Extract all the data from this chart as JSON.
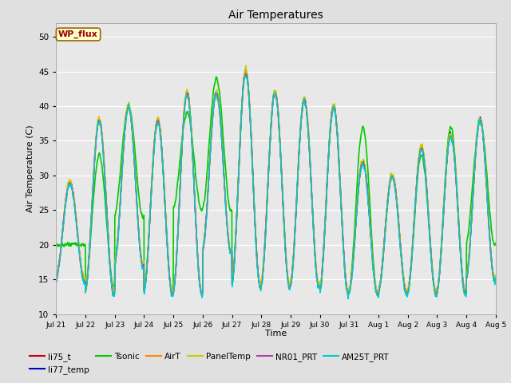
{
  "title": "Air Temperatures",
  "xlabel": "Time",
  "ylabel": "Air Temperature (C)",
  "ylim": [
    10,
    52
  ],
  "yticks": [
    10,
    15,
    20,
    25,
    30,
    35,
    40,
    45,
    50
  ],
  "figure_bg": "#e0e0e0",
  "axes_bg": "#e8e8e8",
  "series": [
    {
      "label": "li75_t",
      "color": "#cc0000",
      "lw": 1.0
    },
    {
      "label": "li77_temp",
      "color": "#0000cc",
      "lw": 1.0
    },
    {
      "label": "Tsonic",
      "color": "#00cc00",
      "lw": 1.2
    },
    {
      "label": "AirT",
      "color": "#ff8800",
      "lw": 1.0
    },
    {
      "label": "PanelTemp",
      "color": "#cccc00",
      "lw": 1.0
    },
    {
      "label": "NR01_PRT",
      "color": "#aa44aa",
      "lw": 1.0
    },
    {
      "label": "AM25T_PRT",
      "color": "#00cccc",
      "lw": 1.0
    }
  ],
  "wp_flux_box": {
    "text": "WP_flux",
    "facecolor": "#ffffcc",
    "edgecolor": "#996600",
    "textcolor": "#990000",
    "fontsize": 8
  },
  "xtick_labels": [
    "Jul 21",
    "Jul 22",
    "Jul 23",
    "Jul 24",
    "Jul 25",
    "Jul 26",
    "Jul 27",
    "Jul 28",
    "Jul 29",
    "Jul 30",
    "Jul 31",
    "Aug 1",
    "Aug 2",
    "Aug 3",
    "Aug 4",
    "Aug 5"
  ],
  "n_days": 15,
  "pts_per_day": 144,
  "daily_max_base": [
    29,
    38,
    40,
    38,
    42,
    42,
    45,
    42,
    41,
    40,
    32,
    30,
    34,
    36,
    38
  ],
  "daily_min_base": [
    15,
    13,
    17,
    13,
    13,
    19,
    14,
    14,
    14,
    13,
    13,
    13,
    13,
    13,
    15
  ],
  "tsonic_max": [
    20,
    33,
    40,
    38,
    39,
    44,
    45,
    42,
    41,
    40,
    37,
    30,
    33,
    37,
    38
  ],
  "tsonic_min": [
    20,
    14,
    24,
    13,
    25,
    25,
    14,
    14,
    14,
    13,
    13,
    13,
    13,
    13,
    20
  ]
}
